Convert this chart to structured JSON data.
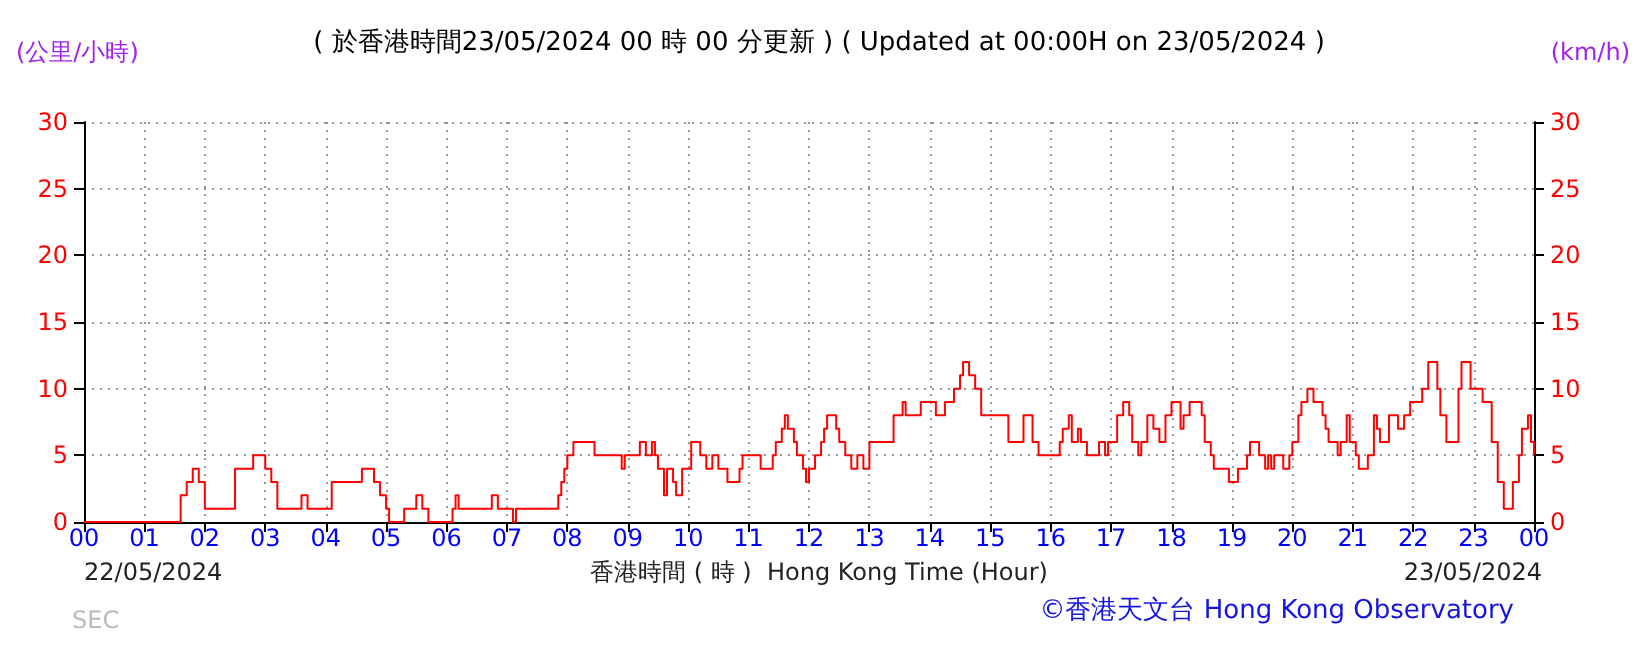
{
  "chart_data": {
    "type": "step",
    "title": "( 於香港時間23/05/2024 00 時 00 分更新 ) ( Updated at 00:00H on 23/05/2024 )",
    "xlabel": "香港時間 ( 時 )  Hong Kong Time (Hour)",
    "ylabel": "(公里/小時)",
    "y2label": "(km/h)",
    "annotations": [
      "22/05/2024",
      "23/05/2024",
      "©香港天文台 Hong Kong Observatory",
      "SEC"
    ],
    "x": [
      0,
      1.6,
      1.7,
      1.8,
      1.9,
      2.0,
      2.5,
      2.8,
      3.0,
      3.1,
      3.2,
      3.6,
      3.7,
      4.1,
      4.6,
      4.8,
      4.9,
      5.0,
      5.05,
      5.3,
      5.5,
      5.6,
      5.7,
      6.1,
      6.15,
      6.2,
      6.75,
      6.85,
      7.1,
      7.15,
      7.85,
      7.9,
      7.95,
      8.0,
      8.1,
      8.45,
      8.9,
      8.95,
      9.2,
      9.3,
      9.4,
      9.45,
      9.5,
      9.6,
      9.65,
      9.75,
      9.8,
      9.9,
      10.05,
      10.2,
      10.3,
      10.4,
      10.5,
      10.65,
      10.85,
      10.9,
      11.2,
      11.4,
      11.45,
      11.55,
      11.6,
      11.65,
      11.75,
      11.8,
      11.9,
      11.95,
      12.0,
      12.1,
      12.2,
      12.25,
      12.3,
      12.45,
      12.5,
      12.6,
      12.7,
      12.8,
      12.9,
      13.0,
      13.4,
      13.55,
      13.6,
      13.85,
      14.1,
      14.25,
      14.4,
      14.5,
      14.55,
      14.65,
      14.75,
      14.85,
      15.3,
      15.55,
      15.7,
      15.8,
      16.15,
      16.2,
      16.3,
      16.35,
      16.45,
      16.5,
      16.6,
      16.8,
      16.9,
      16.95,
      17.1,
      17.2,
      17.3,
      17.35,
      17.45,
      17.5,
      17.6,
      17.7,
      17.8,
      17.9,
      18.0,
      18.15,
      18.2,
      18.3,
      18.5,
      18.55,
      18.65,
      18.7,
      18.95,
      19.1,
      19.25,
      19.3,
      19.45,
      19.55,
      19.6,
      19.65,
      19.7,
      19.85,
      19.95,
      20.0,
      20.1,
      20.15,
      20.25,
      20.35,
      20.5,
      20.55,
      20.6,
      20.75,
      20.8,
      20.9,
      20.95,
      21.05,
      21.1,
      21.25,
      21.35,
      21.4,
      21.45,
      21.6,
      21.75,
      21.85,
      21.95,
      22.15,
      22.25,
      22.4,
      22.45,
      22.55,
      22.75,
      22.8,
      22.95,
      23.15,
      23.3,
      23.4,
      23.5,
      23.65,
      23.75,
      23.8,
      23.9,
      23.95,
      24.0
    ],
    "series": [
      {
        "color": "#ff0000",
        "values": [
          0,
          2,
          3,
          4,
          3,
          1,
          4,
          5,
          4,
          3,
          1,
          2,
          1,
          3,
          4,
          3,
          2,
          1,
          0,
          1,
          2,
          1,
          0,
          1,
          2,
          1,
          2,
          1,
          0,
          1,
          2,
          3,
          4,
          5,
          6,
          5,
          4,
          5,
          6,
          5,
          6,
          5,
          4,
          2,
          4,
          3,
          2,
          4,
          6,
          5,
          4,
          5,
          4,
          3,
          4,
          5,
          4,
          5,
          6,
          7,
          8,
          7,
          6,
          5,
          4,
          3,
          4,
          5,
          6,
          7,
          8,
          7,
          6,
          5,
          4,
          5,
          4,
          6,
          8,
          9,
          8,
          9,
          8,
          9,
          10,
          11,
          12,
          11,
          10,
          8,
          6,
          8,
          6,
          5,
          6,
          7,
          8,
          6,
          7,
          6,
          5,
          6,
          5,
          6,
          8,
          9,
          8,
          6,
          5,
          6,
          8,
          7,
          6,
          8,
          9,
          7,
          8,
          9,
          8,
          6,
          5,
          4,
          3,
          4,
          5,
          6,
          5,
          4,
          5,
          4,
          5,
          4,
          5,
          6,
          8,
          9,
          10,
          9,
          8,
          7,
          6,
          5,
          6,
          8,
          6,
          5,
          4,
          5,
          8,
          7,
          6,
          8,
          7,
          8,
          9,
          10,
          12,
          10,
          8,
          6,
          10,
          12,
          10,
          9,
          6,
          3,
          1,
          3,
          5,
          7,
          8,
          6,
          5
        ]
      }
    ],
    "xlim": [
      0,
      24
    ],
    "xticks": [
      {
        "value": 0,
        "label": "00"
      },
      {
        "value": 1,
        "label": "01"
      },
      {
        "value": 2,
        "label": "02"
      },
      {
        "value": 3,
        "label": "03"
      },
      {
        "value": 4,
        "label": "04"
      },
      {
        "value": 5,
        "label": "05"
      },
      {
        "value": 6,
        "label": "06"
      },
      {
        "value": 7,
        "label": "07"
      },
      {
        "value": 8,
        "label": "08"
      },
      {
        "value": 9,
        "label": "09"
      },
      {
        "value": 10,
        "label": "10"
      },
      {
        "value": 11,
        "label": "11"
      },
      {
        "value": 12,
        "label": "12"
      },
      {
        "value": 13,
        "label": "13"
      },
      {
        "value": 14,
        "label": "14"
      },
      {
        "value": 15,
        "label": "15"
      },
      {
        "value": 16,
        "label": "16"
      },
      {
        "value": 17,
        "label": "17"
      },
      {
        "value": 18,
        "label": "18"
      },
      {
        "value": 19,
        "label": "19"
      },
      {
        "value": 20,
        "label": "20"
      },
      {
        "value": 21,
        "label": "21"
      },
      {
        "value": 22,
        "label": "22"
      },
      {
        "value": 23,
        "label": "23"
      },
      {
        "value": 24,
        "label": "00"
      }
    ],
    "ylim": [
      0,
      30
    ],
    "yticks": [
      0,
      5,
      10,
      15,
      20,
      25,
      30
    ],
    "y2lim": [
      0,
      30
    ],
    "y2ticks": [
      0,
      5,
      10,
      15,
      20,
      25,
      30
    ],
    "grid": true,
    "marker": "none",
    "line_style": "solid"
  }
}
